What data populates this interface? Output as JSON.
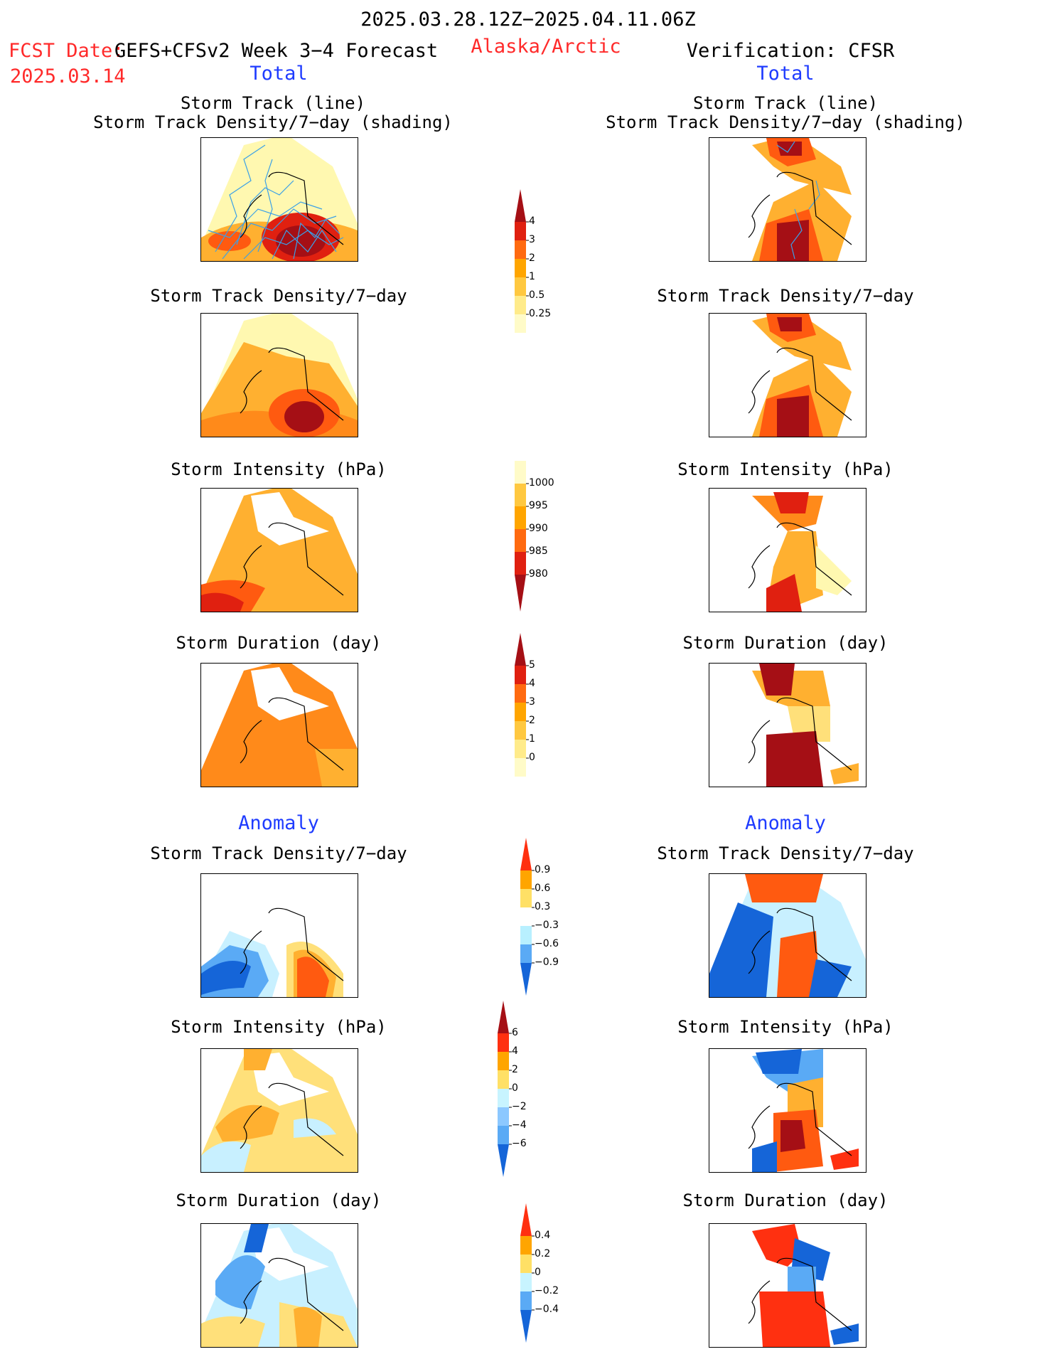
{
  "header": {
    "period": "2025.03.28.12Z−2025.04.11.06Z",
    "fcst_date_label": "FCST Date:",
    "fcst_date": "2025.03.14",
    "forecast_name": "GEFS+CFSv2 Week 3−4 Forecast",
    "region": "Alaska/Arctic",
    "verification": "Verification: CFSR"
  },
  "sections": {
    "total_left": "Total",
    "total_right": "Total",
    "anomaly_left": "Anomaly",
    "anomaly_right": "Anomaly"
  },
  "panel_titles": {
    "track_line": "Storm Track (line)",
    "track_shading": "Storm Track Density/7−day (shading)",
    "density": "Storm Track Density/7−day",
    "intensity": "Storm Intensity (hPa)",
    "duration": "Storm Duration (day)"
  },
  "colorbars": {
    "density": {
      "labels": [
        "4",
        "3",
        "2",
        "1",
        "0.5",
        "0.25"
      ],
      "colors": [
        "#a50f15",
        "#e02010",
        "#ff6a10",
        "#ffa500",
        "#ffc840",
        "#ffeb8a",
        "#fffbc8"
      ]
    },
    "intensity": {
      "labels": [
        "1000",
        "995",
        "990",
        "985",
        "980"
      ],
      "colors": [
        "#fffbc8",
        "#ffc840",
        "#ffa500",
        "#ff6a10",
        "#e02010",
        "#a50f15"
      ]
    },
    "duration": {
      "labels": [
        "5",
        "4",
        "3",
        "2",
        "1",
        "0"
      ],
      "colors": [
        "#a50f15",
        "#e02010",
        "#ff6a10",
        "#ffa500",
        "#ffc840",
        "#ffeb8a",
        "#fffbc8"
      ]
    },
    "anom_density": {
      "labels": [
        "0.9",
        "0.6",
        "0.3",
        "−0.3",
        "−0.6",
        "−0.9"
      ],
      "colors": [
        "#ff3010",
        "#ffa500",
        "#ffe066",
        "#ffffff",
        "#b8f0ff",
        "#5aaaf5",
        "#1565d8"
      ]
    },
    "anom_intensity": {
      "labels": [
        "6",
        "4",
        "2",
        "0",
        "−2",
        "−4",
        "−6"
      ],
      "colors": [
        "#a50f15",
        "#ff3010",
        "#ffa500",
        "#ffe066",
        "#c8f4ff",
        "#8cc8ff",
        "#5aaaf5",
        "#1565d8"
      ]
    },
    "anom_duration": {
      "labels": [
        "0.4",
        "0.2",
        "0",
        "−0.2",
        "−0.4"
      ],
      "colors": [
        "#ff3010",
        "#ffa500",
        "#ffe066",
        "#c8f4ff",
        "#5aaaf5",
        "#1565d8"
      ]
    }
  },
  "palette": {
    "light_yellow": "#fff8b0",
    "yellow": "#ffe07a",
    "orange_light": "#ffb030",
    "orange": "#ff8a1a",
    "orange_red": "#ff5a10",
    "red": "#e02010",
    "dark_red": "#a50f15",
    "light_blue": "#c8f0ff",
    "mid_blue": "#5aaaf5",
    "blue": "#1565d8",
    "track_line": "#3aa0e8"
  }
}
